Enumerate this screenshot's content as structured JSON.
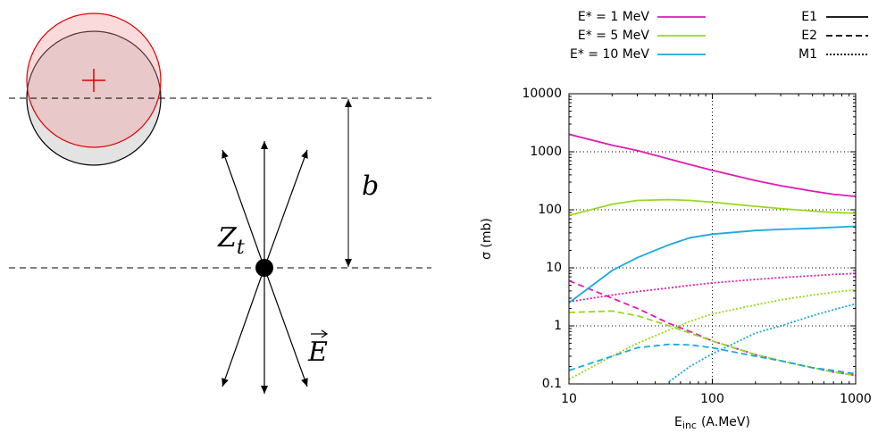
{
  "diagram": {
    "impact_parameter": "b",
    "target": "Z",
    "target_sub": "t",
    "field": "E"
  },
  "chart_data": {
    "type": "line",
    "xlabel": {
      "main": "E",
      "sub": "inc",
      "unit": "(A.MeV)"
    },
    "ylabel": "σ (mb)",
    "xscale": "log",
    "yscale": "log",
    "grid": true,
    "xlim": [
      10,
      1000
    ],
    "ylim": [
      0.1,
      10000
    ],
    "xticks": [
      10,
      100,
      1000
    ],
    "yticks": [
      0.1,
      1,
      10,
      100,
      1000,
      10000
    ],
    "x": [
      10,
      20,
      30,
      50,
      70,
      100,
      200,
      300,
      500,
      700,
      1000
    ],
    "series": [
      {
        "name": "E* = 1 MeV",
        "color": "#e01cb4",
        "multipoles": [
          {
            "name": "E1",
            "dash": "solid",
            "values": [
              2000,
              1300,
              1050,
              750,
              600,
              480,
              320,
              260,
              210,
              185,
              170
            ]
          },
          {
            "name": "E2",
            "dash": "dashed",
            "values": [
              6,
              3,
              2,
              1.1,
              0.8,
              0.55,
              0.32,
              0.25,
              0.19,
              0.16,
              0.14
            ]
          },
          {
            "name": "M1",
            "dash": "dotted",
            "values": [
              2.6,
              3.4,
              3.9,
              4.5,
              5,
              5.5,
              6.3,
              6.8,
              7.3,
              7.7,
              8
            ]
          }
        ]
      },
      {
        "name": "E* = 5 MeV",
        "color": "#98d81c",
        "multipoles": [
          {
            "name": "E1",
            "dash": "solid",
            "values": [
              80,
              125,
              145,
              150,
              145,
              135,
              115,
              105,
              95,
              90,
              87
            ]
          },
          {
            "name": "E2",
            "dash": "dashed",
            "values": [
              1.7,
              1.8,
              1.5,
              1.0,
              0.75,
              0.55,
              0.32,
              0.25,
              0.19,
              0.16,
              0.14
            ]
          },
          {
            "name": "M1",
            "dash": "dotted",
            "values": [
              0.12,
              0.3,
              0.5,
              0.85,
              1.2,
              1.6,
              2.3,
              2.8,
              3.4,
              3.8,
              4.2
            ]
          }
        ]
      },
      {
        "name": "E* = 10 MeV",
        "color": "#1ca8e0",
        "multipoles": [
          {
            "name": "E1",
            "dash": "solid",
            "values": [
              2.5,
              9,
              15,
              25,
              33,
              38,
              44,
              46,
              48,
              50,
              52
            ]
          },
          {
            "name": "E2",
            "dash": "dashed",
            "values": [
              0.17,
              0.3,
              0.42,
              0.48,
              0.47,
              0.42,
              0.3,
              0.25,
              0.19,
              0.17,
              0.15
            ]
          },
          {
            "name": "M1",
            "dash": "dotted",
            "values": [
              null,
              null,
              null,
              0.11,
              0.2,
              0.33,
              0.75,
              1.0,
              1.5,
              1.9,
              2.4
            ]
          }
        ]
      }
    ]
  }
}
